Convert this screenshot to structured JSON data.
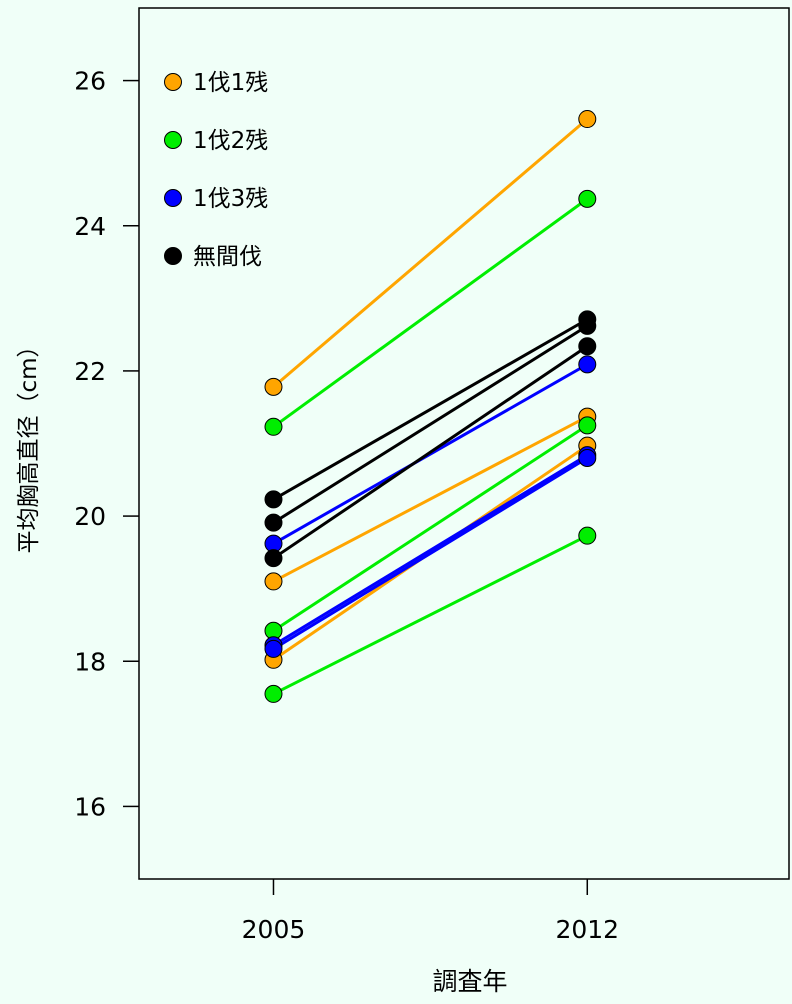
{
  "chart_data": {
    "type": "line",
    "xlabel": "調査年",
    "ylabel": "平均胸高直径（cm）",
    "x": [
      2005,
      2012
    ],
    "x_ticks": [
      "2005",
      "2012"
    ],
    "y_ticks": [
      "16",
      "18",
      "20",
      "22",
      "24",
      "26"
    ],
    "ylim": [
      15.0,
      27.0
    ],
    "xlim": [
      2002.0,
      2016.5
    ],
    "grid": false,
    "legend_position": "top-left",
    "legend": [
      {
        "label": "1伐1残",
        "color": "#ffa500"
      },
      {
        "label": "1伐2残",
        "color": "#00ee00"
      },
      {
        "label": "1伐3残",
        "color": "#0000ff"
      },
      {
        "label": "無間伐",
        "color": "#000000"
      }
    ],
    "series": [
      {
        "group": "1伐1残",
        "color": "#ffa500",
        "values": [
          21.78,
          25.47
        ]
      },
      {
        "group": "1伐1残",
        "color": "#ffa500",
        "values": [
          19.1,
          21.37
        ]
      },
      {
        "group": "1伐1残",
        "color": "#ffa500",
        "values": [
          18.02,
          20.97
        ]
      },
      {
        "group": "1伐2残",
        "color": "#00ee00",
        "values": [
          21.23,
          24.37
        ]
      },
      {
        "group": "1伐2残",
        "color": "#00ee00",
        "values": [
          18.42,
          21.25
        ]
      },
      {
        "group": "1伐2残",
        "color": "#00ee00",
        "values": [
          17.55,
          19.73
        ]
      },
      {
        "group": "1伐3残",
        "color": "#0000ff",
        "values": [
          19.62,
          22.09
        ]
      },
      {
        "group": "1伐3残",
        "color": "#0000ff",
        "values": [
          18.22,
          20.84
        ]
      },
      {
        "group": "1伐3残",
        "color": "#0000ff",
        "values": [
          18.17,
          20.8
        ]
      },
      {
        "group": "無間伐",
        "color": "#000000",
        "values": [
          20.23,
          22.71
        ]
      },
      {
        "group": "無間伐",
        "color": "#000000",
        "values": [
          19.91,
          22.62
        ]
      },
      {
        "group": "無間伐",
        "color": "#000000",
        "values": [
          19.42,
          22.34
        ]
      }
    ]
  }
}
